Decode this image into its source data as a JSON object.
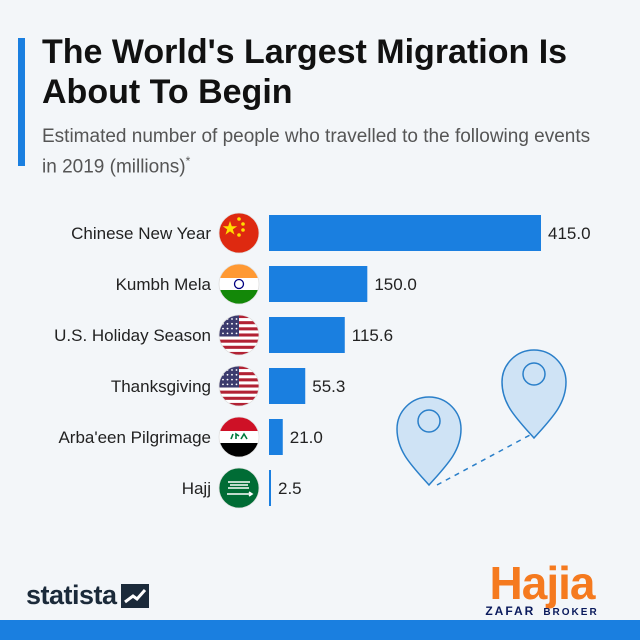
{
  "header": {
    "title": "The World's Largest Migration Is About To Begin",
    "subtitle": "Estimated number of people who travelled to the following events in 2019 (millions)",
    "subtitle_mark": "*"
  },
  "chart_data": {
    "type": "bar",
    "orientation": "horizontal",
    "title": "The World's Largest Migration Is About To Begin",
    "subtitle": "Estimated number of people who travelled to the following events in 2019 (millions)*",
    "categories": [
      "Chinese New Year",
      "Kumbh Mela",
      "U.S. Holiday Season",
      "Thanksgiving",
      "Arba'een Pilgrimage",
      "Hajj"
    ],
    "values": [
      415.0,
      150.0,
      115.6,
      55.3,
      21.0,
      2.5
    ],
    "value_labels": [
      "415.0",
      "150.0",
      "115.6",
      "55.3",
      "21.0",
      "2.5"
    ],
    "flags": [
      "china-flag",
      "india-flag",
      "usa-flag",
      "usa-flag",
      "iraq-flag",
      "saudi-arabia-flag"
    ],
    "xlim": [
      0,
      415.0
    ],
    "bar_color": "#1a7fe0",
    "grid": false,
    "legend": "none"
  },
  "footer": {
    "source_brand": "statista",
    "brand_main": "Hajia",
    "brand_sub_left": "ZAFAR",
    "brand_sub_right": "BROKER"
  },
  "colors": {
    "accent": "#1a7fe0",
    "brand_orange": "#f57a1f",
    "brand_navy": "#0a1a5c"
  }
}
